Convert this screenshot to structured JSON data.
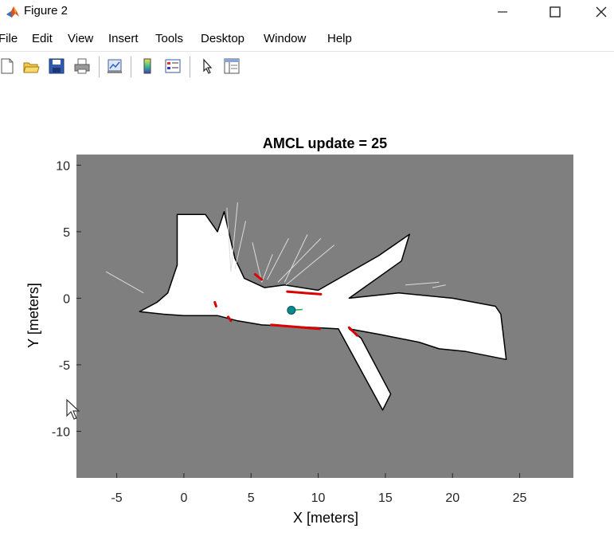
{
  "window": {
    "title": "Figure 2"
  },
  "menu": [
    "File",
    "Edit",
    "View",
    "Insert",
    "Tools",
    "Desktop",
    "Window",
    "Help"
  ],
  "toolbar": {
    "buttons": [
      "new-figure-icon",
      "open-file-icon",
      "save-icon",
      "print-icon",
      "link-plot-icon",
      "colorbar-icon",
      "legend-icon",
      "edit-pointer-icon",
      "property-inspector-icon"
    ]
  },
  "colors": {
    "map_background": "#7f7f7f",
    "free_space": "#ffffff",
    "occupied": "#000000",
    "laser_hits": "#dd0000",
    "robot": "#008b8b",
    "title_bar_icon": "#d9541e"
  },
  "chart_data": {
    "type": "occupancy-map",
    "title": "AMCL update = 25",
    "xlabel": "X [meters]",
    "ylabel": "Y [meters]",
    "xlim": [
      -8.0,
      29.0
    ],
    "ylim": [
      -13.5,
      10.8
    ],
    "xticks": [
      -5,
      0,
      5,
      10,
      15,
      20,
      25
    ],
    "yticks": [
      10,
      5,
      0,
      -5,
      -10
    ],
    "xtick_labels": [
      "-5",
      "0",
      "5",
      "10",
      "15",
      "20",
      "25"
    ],
    "ytick_labels": [
      "10",
      "5",
      "0",
      "-5",
      "-10"
    ],
    "grid": false,
    "robot_pose": {
      "x": 8.0,
      "y": -0.9
    }
  }
}
